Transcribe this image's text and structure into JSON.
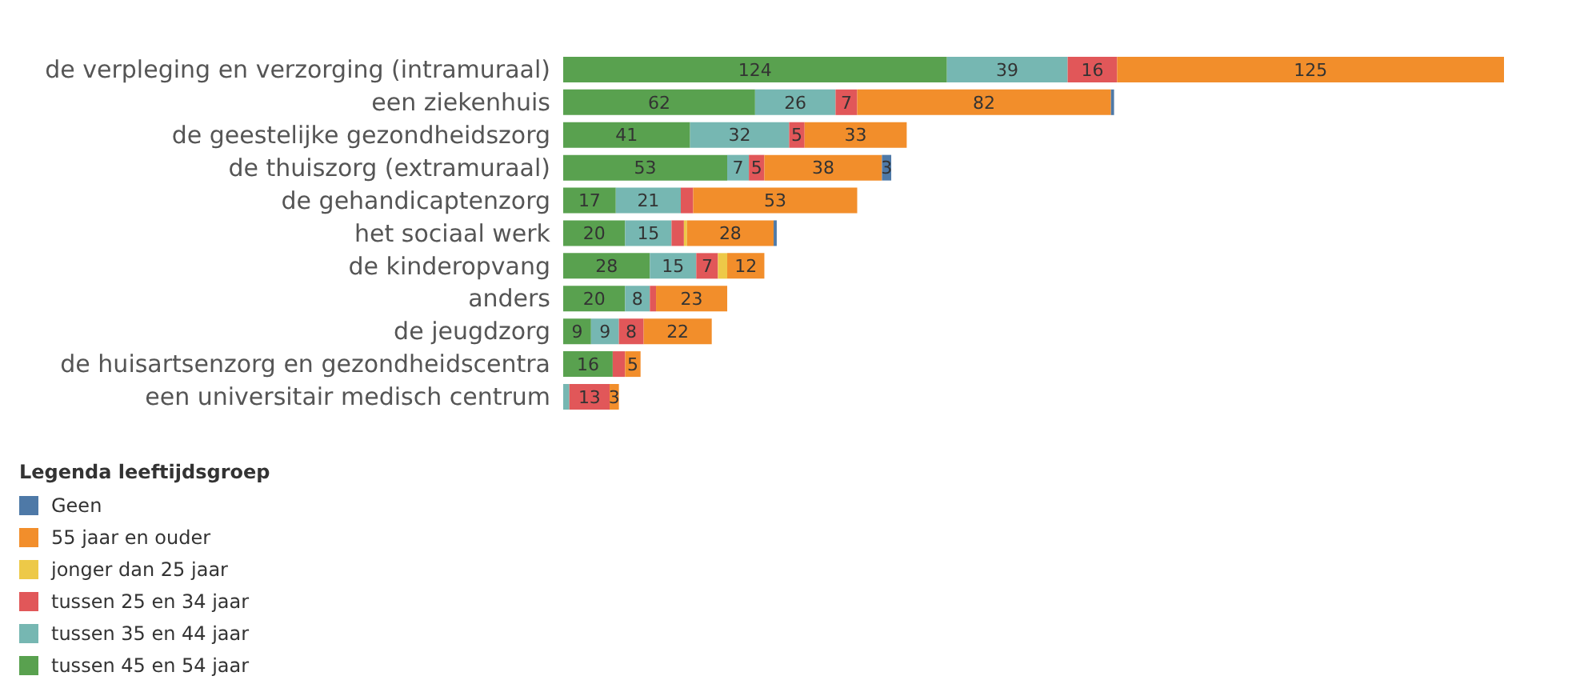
{
  "chart_data": {
    "type": "bar",
    "orientation": "horizontal",
    "stacked": true,
    "legend": "bottom left",
    "legend_title": "Legenda leeftijdsgroep",
    "categories": [
      "de verpleging en verzorging (intramuraal)",
      "een ziekenhuis",
      "de geestelijke gezondheidszorg",
      "de thuiszorg (extramuraal)",
      "de gehandicaptenzorg",
      "het sociaal werk",
      "de kinderopvang",
      "anders",
      "de jeugdzorg",
      "de huisartsenzorg en gezondheidscentra",
      "een universitair medisch centrum"
    ],
    "series": [
      {
        "name": "tussen 45 en 54 jaar",
        "color": "#59a14f",
        "values": [
          124,
          62,
          41,
          53,
          17,
          20,
          28,
          20,
          9,
          16,
          null
        ],
        "value_labels": [
          "124",
          "62",
          "41",
          "53",
          "17",
          "20",
          "28",
          "20",
          "9",
          "16",
          null
        ]
      },
      {
        "name": "tussen 35 en 44 jaar",
        "color": "#76b7b2",
        "values": [
          39,
          26,
          32,
          7,
          21,
          15,
          15,
          8,
          9,
          null,
          2
        ],
        "value_labels": [
          "39",
          "26",
          "32",
          "7",
          "21",
          "15",
          "15",
          "8",
          "9",
          null,
          null
        ]
      },
      {
        "name": "tussen 25 en 34 jaar",
        "color": "#e15759",
        "values": [
          16,
          7,
          5,
          5,
          4,
          4,
          7,
          2,
          8,
          4,
          13
        ],
        "value_labels": [
          "16",
          "7",
          "5",
          "5",
          null,
          null,
          "7",
          null,
          "8",
          null,
          "13"
        ]
      },
      {
        "name": "jonger dan 25 jaar",
        "color": "#edc948",
        "values": [
          null,
          null,
          null,
          null,
          null,
          1,
          3,
          null,
          null,
          null,
          null
        ],
        "value_labels": [
          null,
          null,
          null,
          null,
          null,
          null,
          null,
          null,
          null,
          null,
          null
        ]
      },
      {
        "name": "55 jaar en ouder",
        "color": "#f28e2b",
        "values": [
          125,
          82,
          33,
          38,
          53,
          28,
          12,
          23,
          22,
          5,
          3
        ],
        "value_labels": [
          "125",
          "82",
          "33",
          "38",
          "53",
          "28",
          "12",
          "23",
          "22",
          "5",
          "3"
        ]
      },
      {
        "name": "Geen",
        "color": "#4e79a7",
        "values": [
          null,
          1,
          null,
          3,
          null,
          1,
          null,
          null,
          null,
          null,
          null
        ],
        "value_labels": [
          null,
          null,
          null,
          "3",
          null,
          null,
          null,
          null,
          null,
          null,
          null
        ]
      }
    ]
  }
}
